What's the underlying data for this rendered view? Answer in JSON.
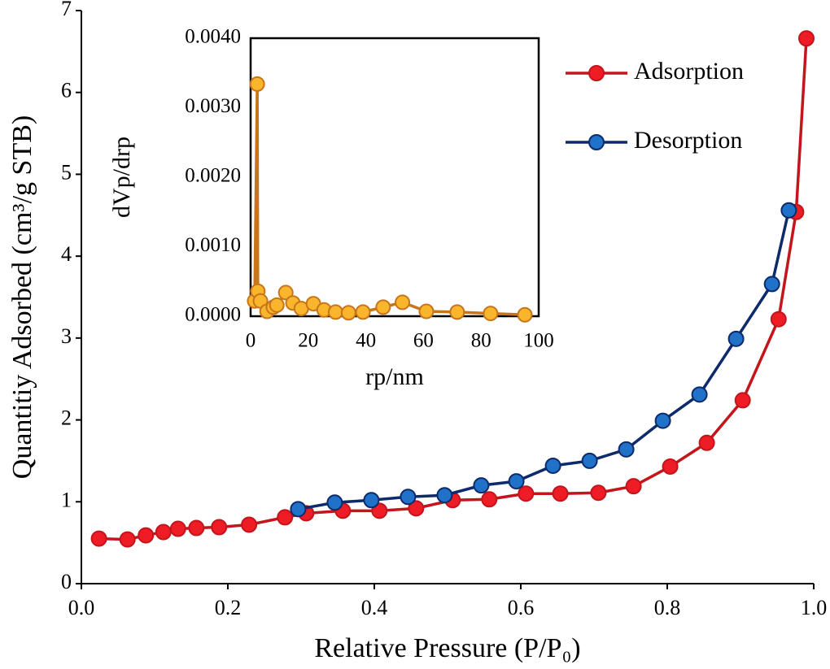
{
  "chart_data": [
    {
      "type": "line",
      "x_label": "Relative Pressure (P/P₀)",
      "y_label": "Quantitiy Adsorbed (cm³/g STB)",
      "xlim": [
        0,
        1.0
      ],
      "ylim": [
        0,
        7
      ],
      "xticks": [
        {
          "value": 0,
          "label": "0.0"
        },
        {
          "value": 0.2,
          "label": "0.2"
        },
        {
          "value": 0.4,
          "label": "0.4"
        },
        {
          "value": 0.6,
          "label": "0.6"
        },
        {
          "value": 0.8,
          "label": "0.8"
        },
        {
          "value": 1.0,
          "label": "1.0"
        }
      ],
      "yticks": [
        0,
        1,
        2,
        3,
        4,
        5,
        6,
        7
      ],
      "legend": "upper right",
      "series": [
        {
          "name": "Adsorption",
          "color": "#ee1c25",
          "line_color": "#c4141c",
          "x": [
            0.024,
            0.063,
            0.088,
            0.112,
            0.132,
            0.157,
            0.188,
            0.229,
            0.278,
            0.307,
            0.357,
            0.407,
            0.457,
            0.507,
            0.557,
            0.607,
            0.654,
            0.706,
            0.754,
            0.804,
            0.854,
            0.903,
            0.952,
            0.976,
            0.99
          ],
          "values": [
            0.55,
            0.54,
            0.59,
            0.63,
            0.67,
            0.68,
            0.69,
            0.72,
            0.81,
            0.86,
            0.89,
            0.89,
            0.92,
            1.02,
            1.03,
            1.1,
            1.1,
            1.11,
            1.19,
            1.43,
            1.72,
            2.24,
            3.23,
            4.54,
            6.66
          ]
        },
        {
          "name": "Desorption",
          "color": "#1f72c8",
          "line_color": "#0d2a6b",
          "x": [
            0.296,
            0.346,
            0.396,
            0.446,
            0.496,
            0.546,
            0.594,
            0.644,
            0.694,
            0.744,
            0.794,
            0.844,
            0.894,
            0.943,
            0.966
          ],
          "values": [
            0.91,
            0.99,
            1.02,
            1.06,
            1.08,
            1.2,
            1.25,
            1.44,
            1.5,
            1.64,
            1.99,
            2.31,
            2.99,
            3.66,
            4.56
          ]
        }
      ]
    },
    {
      "type": "line",
      "x_label": "rp/nm",
      "y_label": "dVp/drp",
      "xlim": [
        0,
        100
      ],
      "ylim": [
        0,
        0.004
      ],
      "xticks": [
        0,
        20,
        40,
        60,
        80,
        100
      ],
      "yticks": [
        {
          "value": 0,
          "label": "0.0000"
        },
        {
          "value": 0.001,
          "label": "0.0010"
        },
        {
          "value": 0.002,
          "label": "0.0020"
        },
        {
          "value": 0.003,
          "label": "0.0030"
        },
        {
          "value": 0.004,
          "label": "0.0040"
        }
      ],
      "series": [
        {
          "color": "#f9b52c",
          "line_color": "#c8741a",
          "x": [
            1.4,
            2.3,
            2.5,
            3.4,
            5.7,
            7.9,
            9.1,
            12.2,
            14.7,
            17.6,
            21.8,
            25.5,
            29.5,
            34,
            39,
            46,
            52.7,
            61,
            71.7,
            83.3,
            95.2
          ],
          "values": [
            0.00022,
            0.00334,
            0.00036,
            0.00022,
            7e-05,
            0.00013,
            0.00016,
            0.00034,
            0.00019,
            0.00011,
            0.00018,
            9e-05,
            6e-05,
            5e-05,
            6e-05,
            0.00013,
            0.0002,
            7e-05,
            6e-05,
            4e-05,
            2e-05
          ]
        }
      ]
    }
  ]
}
